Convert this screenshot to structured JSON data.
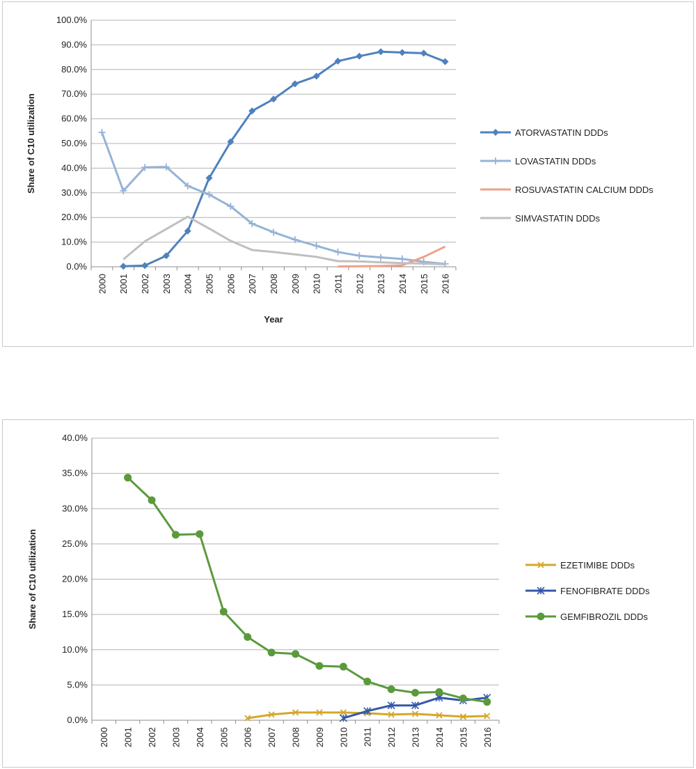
{
  "chart_data": [
    {
      "type": "line",
      "ylabel": "Share of C10 utilization",
      "xlabel": "Year",
      "ylim": [
        0,
        100
      ],
      "y_ticks": [
        "0.0%",
        "10.0%",
        "20.0%",
        "30.0%",
        "40.0%",
        "50.0%",
        "60.0%",
        "70.0%",
        "80.0%",
        "90.0%",
        "100.0%"
      ],
      "categories": [
        "2000",
        "2001",
        "2002",
        "2003",
        "2004",
        "2005",
        "2006",
        "2007",
        "2008",
        "2009",
        "2010",
        "2011",
        "2012",
        "2013",
        "2014",
        "2015",
        "2016"
      ],
      "grid": true,
      "legend_position": "right",
      "series": [
        {
          "name": "ATORVASTATIN  DDDs",
          "color": "#4f81bd",
          "marker": "diamond",
          "values": [
            null,
            0.2,
            0.5,
            4.5,
            14.5,
            36.0,
            50.7,
            63.2,
            68.0,
            74.2,
            77.3,
            83.4,
            85.4,
            87.2,
            86.9,
            86.6,
            83.2
          ]
        },
        {
          "name": "LOVASTATIN DDDs",
          "color": "#95b3d7",
          "marker": "plus",
          "values": [
            54.5,
            30.8,
            40.3,
            40.5,
            32.8,
            29.3,
            24.5,
            17.5,
            14.0,
            11.0,
            8.5,
            6.0,
            4.5,
            3.8,
            3.2,
            2.0,
            1.2
          ]
        },
        {
          "name": "ROSUVASTATIN CALCIUM DDDs",
          "color": "#f0a08a",
          "marker": "none",
          "values": [
            null,
            null,
            null,
            null,
            null,
            null,
            null,
            null,
            null,
            null,
            null,
            0.1,
            0.2,
            0.3,
            0.6,
            4.0,
            8.2
          ]
        },
        {
          "name": "SIMVASTATIN DDDs",
          "color": "#bfbfbf",
          "marker": "none",
          "values": [
            null,
            3.0,
            10.3,
            15.3,
            20.3,
            15.5,
            10.5,
            6.8,
            6.0,
            5.0,
            4.0,
            2.3,
            2.2,
            1.8,
            1.5,
            1.3,
            1.0
          ]
        }
      ]
    },
    {
      "type": "line",
      "ylabel": "Share of C10 utilization",
      "xlabel": "",
      "ylim": [
        0,
        40
      ],
      "y_ticks": [
        "0.0%",
        "5.0%",
        "10.0%",
        "15.0%",
        "20.0%",
        "25.0%",
        "30.0%",
        "35.0%",
        "40.0%"
      ],
      "categories": [
        "2000",
        "2001",
        "2002",
        "2003",
        "2004",
        "2005",
        "2006",
        "2007",
        "2008",
        "2009",
        "2010",
        "2011",
        "2012",
        "2013",
        "2014",
        "2015",
        "2016"
      ],
      "grid": true,
      "legend_position": "right",
      "series": [
        {
          "name": "EZETIMIBE DDDs",
          "color": "#d4a72c",
          "marker": "x",
          "values": [
            null,
            null,
            null,
            null,
            null,
            null,
            0.3,
            0.8,
            1.1,
            1.1,
            1.1,
            1.0,
            0.8,
            0.9,
            0.7,
            0.5,
            0.6
          ]
        },
        {
          "name": "FENOFIBRATE DDDs",
          "color": "#3358a8",
          "marker": "star",
          "values": [
            null,
            null,
            null,
            null,
            null,
            null,
            null,
            null,
            null,
            null,
            0.3,
            1.3,
            2.1,
            2.1,
            3.2,
            2.8,
            3.2
          ]
        },
        {
          "name": "GEMFIBROZIL DDDs",
          "color": "#5b9a3c",
          "marker": "circle",
          "values": [
            null,
            34.4,
            31.2,
            26.3,
            26.4,
            15.4,
            11.8,
            9.6,
            9.4,
            7.7,
            7.6,
            5.5,
            4.4,
            3.9,
            4.0,
            3.1,
            2.6
          ]
        }
      ]
    }
  ]
}
